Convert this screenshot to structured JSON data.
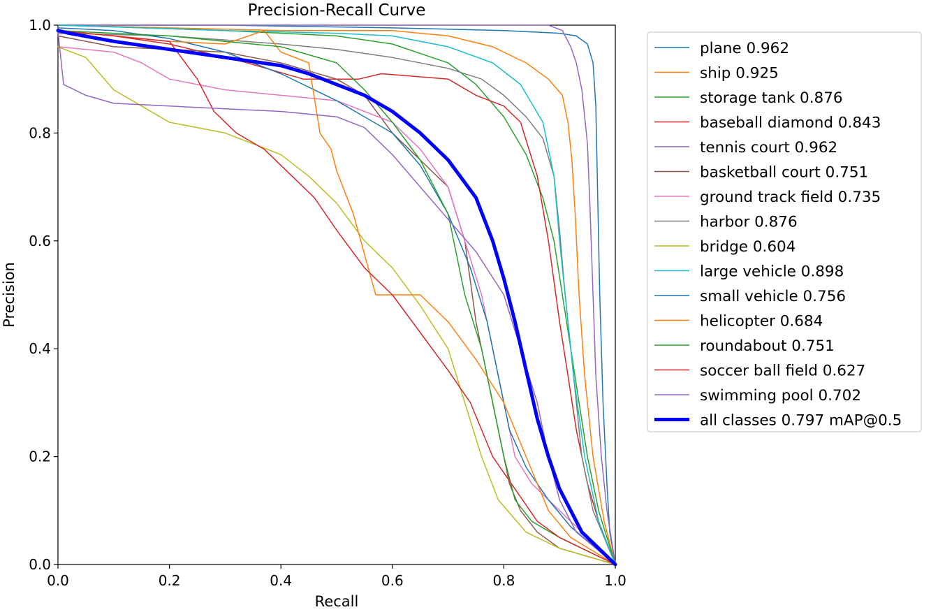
{
  "chart_data": {
    "type": "line",
    "title": "Precision-Recall Curve",
    "xlabel": "Recall",
    "ylabel": "Precision",
    "xlim": [
      0.0,
      1.0
    ],
    "ylim": [
      0.0,
      1.0
    ],
    "xticks": [
      "0.0",
      "0.2",
      "0.4",
      "0.6",
      "0.8",
      "1.0"
    ],
    "yticks": [
      "0.0",
      "0.2",
      "0.4",
      "0.6",
      "0.8",
      "1.0"
    ],
    "grid": false,
    "legend_position": "outside-right",
    "series": [
      {
        "name": "plane 0.962",
        "color": "#1f77b4",
        "width": 1.5,
        "points": [
          [
            0,
            1.0
          ],
          [
            0.3,
            1.0
          ],
          [
            0.6,
            0.995
          ],
          [
            0.8,
            0.99
          ],
          [
            0.9,
            0.985
          ],
          [
            0.93,
            0.98
          ],
          [
            0.95,
            0.965
          ],
          [
            0.96,
            0.93
          ],
          [
            0.965,
            0.85
          ],
          [
            0.968,
            0.7
          ],
          [
            0.972,
            0.5
          ],
          [
            0.978,
            0.3
          ],
          [
            0.985,
            0.15
          ],
          [
            0.99,
            0.06
          ],
          [
            1.0,
            0.0
          ]
        ]
      },
      {
        "name": "ship 0.925",
        "color": "#ff7f0e",
        "width": 1.5,
        "points": [
          [
            0,
            1.0
          ],
          [
            0.4,
            0.99
          ],
          [
            0.6,
            0.99
          ],
          [
            0.7,
            0.98
          ],
          [
            0.78,
            0.96
          ],
          [
            0.84,
            0.93
          ],
          [
            0.88,
            0.9
          ],
          [
            0.905,
            0.87
          ],
          [
            0.915,
            0.82
          ],
          [
            0.922,
            0.75
          ],
          [
            0.928,
            0.65
          ],
          [
            0.935,
            0.5
          ],
          [
            0.945,
            0.35
          ],
          [
            0.96,
            0.2
          ],
          [
            0.98,
            0.08
          ],
          [
            1.0,
            0.0
          ]
        ]
      },
      {
        "name": "storage tank 0.876",
        "color": "#2ca02c",
        "width": 1.5,
        "points": [
          [
            0,
            1.0
          ],
          [
            0.3,
            0.99
          ],
          [
            0.5,
            0.98
          ],
          [
            0.6,
            0.965
          ],
          [
            0.7,
            0.93
          ],
          [
            0.75,
            0.89
          ],
          [
            0.8,
            0.83
          ],
          [
            0.84,
            0.76
          ],
          [
            0.87,
            0.68
          ],
          [
            0.89,
            0.6
          ],
          [
            0.905,
            0.5
          ],
          [
            0.92,
            0.4
          ],
          [
            0.935,
            0.3
          ],
          [
            0.95,
            0.2
          ],
          [
            0.97,
            0.1
          ],
          [
            1.0,
            0.0
          ]
        ]
      },
      {
        "name": "baseball diamond 0.843",
        "color": "#d62728",
        "width": 1.5,
        "points": [
          [
            0,
            0.99
          ],
          [
            0.1,
            0.98
          ],
          [
            0.2,
            0.965
          ],
          [
            0.26,
            0.95
          ],
          [
            0.34,
            0.93
          ],
          [
            0.44,
            0.9
          ],
          [
            0.54,
            0.9
          ],
          [
            0.58,
            0.91
          ],
          [
            0.7,
            0.9
          ],
          [
            0.75,
            0.87
          ],
          [
            0.8,
            0.85
          ],
          [
            0.83,
            0.82
          ],
          [
            0.86,
            0.72
          ],
          [
            0.88,
            0.6
          ],
          [
            0.9,
            0.45
          ],
          [
            0.915,
            0.35
          ],
          [
            0.93,
            0.25
          ],
          [
            0.95,
            0.15
          ],
          [
            0.97,
            0.08
          ],
          [
            1.0,
            0.0
          ]
        ]
      },
      {
        "name": "tennis court 0.962",
        "color": "#9467bd",
        "width": 1.5,
        "points": [
          [
            0,
            1.0
          ],
          [
            0.5,
            1.0
          ],
          [
            0.8,
            1.0
          ],
          [
            0.88,
            1.0
          ],
          [
            0.905,
            0.99
          ],
          [
            0.92,
            0.96
          ],
          [
            0.93,
            0.93
          ],
          [
            0.94,
            0.88
          ],
          [
            0.95,
            0.78
          ],
          [
            0.955,
            0.65
          ],
          [
            0.96,
            0.5
          ],
          [
            0.965,
            0.35
          ],
          [
            0.975,
            0.2
          ],
          [
            0.985,
            0.1
          ],
          [
            1.0,
            0.0
          ]
        ]
      },
      {
        "name": "basketball court 0.751",
        "color": "#8c564b",
        "width": 1.5,
        "points": [
          [
            0,
            0.98
          ],
          [
            0.1,
            0.96
          ],
          [
            0.2,
            0.955
          ],
          [
            0.3,
            0.95
          ],
          [
            0.4,
            0.93
          ],
          [
            0.5,
            0.9
          ],
          [
            0.55,
            0.87
          ],
          [
            0.6,
            0.8
          ],
          [
            0.65,
            0.75
          ],
          [
            0.7,
            0.7
          ],
          [
            0.73,
            0.6
          ],
          [
            0.75,
            0.45
          ],
          [
            0.77,
            0.35
          ],
          [
            0.79,
            0.25
          ],
          [
            0.81,
            0.15
          ],
          [
            0.83,
            0.1
          ],
          [
            0.86,
            0.06
          ],
          [
            0.9,
            0.03
          ],
          [
            1.0,
            0.0
          ]
        ]
      },
      {
        "name": "ground track field 0.735",
        "color": "#e377c2",
        "width": 1.5,
        "points": [
          [
            0,
            0.96
          ],
          [
            0.1,
            0.95
          ],
          [
            0.15,
            0.93
          ],
          [
            0.2,
            0.9
          ],
          [
            0.3,
            0.88
          ],
          [
            0.4,
            0.87
          ],
          [
            0.5,
            0.86
          ],
          [
            0.55,
            0.84
          ],
          [
            0.6,
            0.82
          ],
          [
            0.65,
            0.77
          ],
          [
            0.7,
            0.7
          ],
          [
            0.73,
            0.6
          ],
          [
            0.76,
            0.5
          ],
          [
            0.78,
            0.4
          ],
          [
            0.8,
            0.3
          ],
          [
            0.82,
            0.2
          ],
          [
            0.85,
            0.15
          ],
          [
            0.88,
            0.12
          ],
          [
            0.9,
            0.1
          ],
          [
            1.0,
            0.0
          ]
        ]
      },
      {
        "name": "harbor 0.876",
        "color": "#7f7f7f",
        "width": 1.5,
        "points": [
          [
            0,
            0.985
          ],
          [
            0.2,
            0.98
          ],
          [
            0.4,
            0.965
          ],
          [
            0.5,
            0.955
          ],
          [
            0.6,
            0.94
          ],
          [
            0.7,
            0.92
          ],
          [
            0.76,
            0.9
          ],
          [
            0.8,
            0.87
          ],
          [
            0.84,
            0.83
          ],
          [
            0.87,
            0.79
          ],
          [
            0.89,
            0.72
          ],
          [
            0.9,
            0.62
          ],
          [
            0.91,
            0.5
          ],
          [
            0.925,
            0.35
          ],
          [
            0.94,
            0.2
          ],
          [
            0.96,
            0.1
          ],
          [
            1.0,
            0.0
          ]
        ]
      },
      {
        "name": "bridge 0.604",
        "color": "#bcbd22",
        "width": 1.5,
        "points": [
          [
            0,
            0.96
          ],
          [
            0.05,
            0.94
          ],
          [
            0.1,
            0.88
          ],
          [
            0.15,
            0.85
          ],
          [
            0.2,
            0.82
          ],
          [
            0.3,
            0.8
          ],
          [
            0.35,
            0.78
          ],
          [
            0.4,
            0.76
          ],
          [
            0.45,
            0.72
          ],
          [
            0.5,
            0.67
          ],
          [
            0.55,
            0.6
          ],
          [
            0.6,
            0.55
          ],
          [
            0.65,
            0.48
          ],
          [
            0.7,
            0.4
          ],
          [
            0.73,
            0.3
          ],
          [
            0.76,
            0.2
          ],
          [
            0.79,
            0.12
          ],
          [
            0.84,
            0.06
          ],
          [
            0.9,
            0.03
          ],
          [
            1.0,
            0.0
          ]
        ]
      },
      {
        "name": "large vehicle 0.898",
        "color": "#17becf",
        "width": 1.5,
        "points": [
          [
            0,
            1.0
          ],
          [
            0.3,
            0.99
          ],
          [
            0.5,
            0.985
          ],
          [
            0.6,
            0.98
          ],
          [
            0.7,
            0.96
          ],
          [
            0.78,
            0.93
          ],
          [
            0.83,
            0.89
          ],
          [
            0.87,
            0.82
          ],
          [
            0.89,
            0.72
          ],
          [
            0.9,
            0.6
          ],
          [
            0.91,
            0.5
          ],
          [
            0.925,
            0.35
          ],
          [
            0.945,
            0.2
          ],
          [
            0.97,
            0.08
          ],
          [
            1.0,
            0.0
          ]
        ]
      },
      {
        "name": "small vehicle 0.756",
        "color": "#1f77b4",
        "width": 1.5,
        "points": [
          [
            0,
            0.995
          ],
          [
            0.1,
            0.99
          ],
          [
            0.2,
            0.975
          ],
          [
            0.3,
            0.95
          ],
          [
            0.4,
            0.91
          ],
          [
            0.5,
            0.86
          ],
          [
            0.6,
            0.8
          ],
          [
            0.65,
            0.74
          ],
          [
            0.7,
            0.65
          ],
          [
            0.74,
            0.55
          ],
          [
            0.77,
            0.45
          ],
          [
            0.79,
            0.35
          ],
          [
            0.81,
            0.25
          ],
          [
            0.84,
            0.18
          ],
          [
            0.88,
            0.12
          ],
          [
            0.92,
            0.07
          ],
          [
            1.0,
            0.0
          ]
        ]
      },
      {
        "name": "helicopter 0.684",
        "color": "#ff7f0e",
        "width": 1.5,
        "points": [
          [
            0,
            0.99
          ],
          [
            0.1,
            0.98
          ],
          [
            0.2,
            0.97
          ],
          [
            0.3,
            0.965
          ],
          [
            0.37,
            0.99
          ],
          [
            0.4,
            0.95
          ],
          [
            0.45,
            0.93
          ],
          [
            0.47,
            0.8
          ],
          [
            0.49,
            0.77
          ],
          [
            0.5,
            0.73
          ],
          [
            0.53,
            0.65
          ],
          [
            0.57,
            0.5
          ],
          [
            0.6,
            0.5
          ],
          [
            0.65,
            0.5
          ],
          [
            0.7,
            0.45
          ],
          [
            0.75,
            0.38
          ],
          [
            0.8,
            0.3
          ],
          [
            0.84,
            0.2
          ],
          [
            0.88,
            0.1
          ],
          [
            0.92,
            0.05
          ],
          [
            1.0,
            0.0
          ]
        ]
      },
      {
        "name": "roundabout 0.751",
        "color": "#2ca02c",
        "width": 1.5,
        "points": [
          [
            0,
            0.99
          ],
          [
            0.2,
            0.98
          ],
          [
            0.3,
            0.97
          ],
          [
            0.4,
            0.96
          ],
          [
            0.5,
            0.93
          ],
          [
            0.55,
            0.88
          ],
          [
            0.6,
            0.82
          ],
          [
            0.65,
            0.75
          ],
          [
            0.7,
            0.65
          ],
          [
            0.73,
            0.5
          ],
          [
            0.76,
            0.4
          ],
          [
            0.78,
            0.3
          ],
          [
            0.8,
            0.2
          ],
          [
            0.82,
            0.12
          ],
          [
            0.85,
            0.08
          ],
          [
            0.9,
            0.05
          ],
          [
            1.0,
            0.0
          ]
        ]
      },
      {
        "name": "soccer ball field 0.627",
        "color": "#d62728",
        "width": 1.5,
        "points": [
          [
            0,
            0.99
          ],
          [
            0.1,
            0.98
          ],
          [
            0.2,
            0.97
          ],
          [
            0.25,
            0.9
          ],
          [
            0.28,
            0.84
          ],
          [
            0.32,
            0.8
          ],
          [
            0.37,
            0.77
          ],
          [
            0.42,
            0.72
          ],
          [
            0.46,
            0.68
          ],
          [
            0.5,
            0.62
          ],
          [
            0.55,
            0.55
          ],
          [
            0.6,
            0.5
          ],
          [
            0.65,
            0.43
          ],
          [
            0.7,
            0.36
          ],
          [
            0.74,
            0.3
          ],
          [
            0.78,
            0.2
          ],
          [
            0.82,
            0.14
          ],
          [
            0.86,
            0.08
          ],
          [
            0.9,
            0.05
          ],
          [
            1.0,
            0.0
          ]
        ]
      },
      {
        "name": "swimming pool 0.702",
        "color": "#9467bd",
        "width": 1.5,
        "points": [
          [
            0,
            0.99
          ],
          [
            0.01,
            0.89
          ],
          [
            0.05,
            0.87
          ],
          [
            0.1,
            0.855
          ],
          [
            0.2,
            0.85
          ],
          [
            0.3,
            0.845
          ],
          [
            0.4,
            0.84
          ],
          [
            0.5,
            0.83
          ],
          [
            0.55,
            0.81
          ],
          [
            0.6,
            0.76
          ],
          [
            0.65,
            0.7
          ],
          [
            0.7,
            0.64
          ],
          [
            0.75,
            0.58
          ],
          [
            0.8,
            0.5
          ],
          [
            0.83,
            0.4
          ],
          [
            0.86,
            0.3
          ],
          [
            0.88,
            0.2
          ],
          [
            0.9,
            0.12
          ],
          [
            0.93,
            0.06
          ],
          [
            1.0,
            0.0
          ]
        ]
      },
      {
        "name": "all classes 0.797 mAP@0.5",
        "color": "#0000ff",
        "width": 5,
        "points": [
          [
            0,
            0.99
          ],
          [
            0.02,
            0.985
          ],
          [
            0.1,
            0.97
          ],
          [
            0.2,
            0.955
          ],
          [
            0.3,
            0.94
          ],
          [
            0.4,
            0.925
          ],
          [
            0.45,
            0.91
          ],
          [
            0.5,
            0.89
          ],
          [
            0.55,
            0.87
          ],
          [
            0.6,
            0.84
          ],
          [
            0.65,
            0.8
          ],
          [
            0.7,
            0.75
          ],
          [
            0.75,
            0.68
          ],
          [
            0.78,
            0.6
          ],
          [
            0.8,
            0.53
          ],
          [
            0.82,
            0.45
          ],
          [
            0.84,
            0.36
          ],
          [
            0.86,
            0.27
          ],
          [
            0.88,
            0.2
          ],
          [
            0.9,
            0.14
          ],
          [
            0.92,
            0.1
          ],
          [
            0.94,
            0.06
          ],
          [
            0.97,
            0.03
          ],
          [
            1.0,
            0.0
          ]
        ]
      }
    ]
  }
}
